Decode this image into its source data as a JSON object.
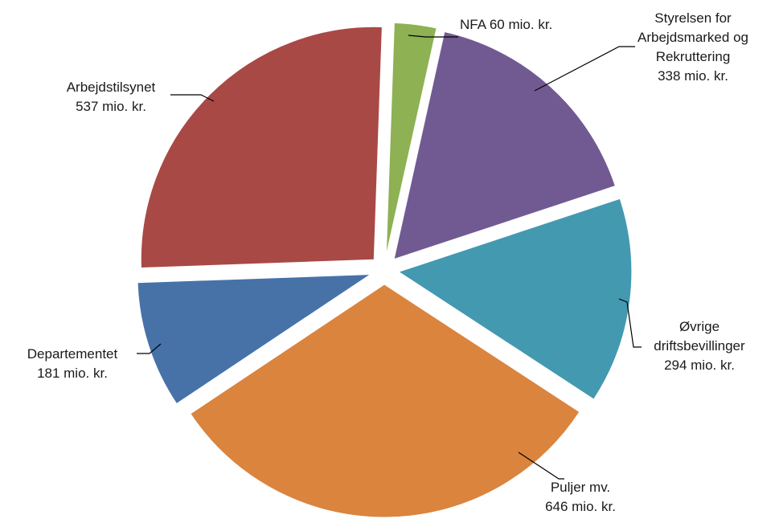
{
  "chart_data": {
    "type": "pie",
    "title": "",
    "exploded": true,
    "legend": "none",
    "slices": [
      {
        "name": "NFA",
        "value": 60,
        "label_lines": [
          "NFA 60 mio. kr."
        ],
        "color": "#8db153"
      },
      {
        "name": "Styrelsen for Arbejdsmarked og Rekruttering",
        "value": 338,
        "label_lines": [
          "Styrelsen for",
          "Arbejdsmarked og",
          "Rekruttering",
          "338 mio. kr."
        ],
        "color": "#715a92"
      },
      {
        "name": "Øvrige driftsbevillinger",
        "value": 294,
        "label_lines": [
          "Øvrige",
          "driftsbevillinger",
          "294 mio. kr."
        ],
        "color": "#4399b0"
      },
      {
        "name": "Puljer mv.",
        "value": 646,
        "label_lines": [
          "Puljer mv.",
          "646 mio. kr."
        ],
        "color": "#da843e"
      },
      {
        "name": "Departementet",
        "value": 181,
        "label_lines": [
          "Departementet",
          "181 mio. kr."
        ],
        "color": "#4672a8"
      },
      {
        "name": "Arbejdstilsynet",
        "value": 537,
        "label_lines": [
          "Arbejdstilsynet",
          "537 mio. kr."
        ],
        "color": "#a84946"
      }
    ]
  }
}
